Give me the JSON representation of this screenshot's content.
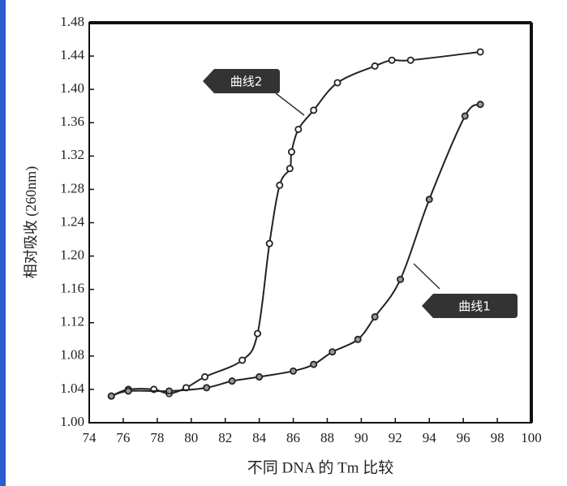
{
  "chart_data": {
    "type": "line",
    "x_label": "不同 DNA 的 Tm 比较",
    "y_label": "相对吸收 (260nm)",
    "xlim": [
      74,
      100
    ],
    "xticks": [
      74,
      76,
      78,
      80,
      82,
      84,
      86,
      88,
      90,
      92,
      94,
      96,
      98,
      100
    ],
    "ylim": [
      1,
      1.48
    ],
    "yticks": [
      {
        "value": 1,
        "label": "1.00"
      },
      1.04,
      1.08,
      1.12,
      1.16,
      {
        "value": 1.2,
        "label": "1.20"
      },
      1.24,
      1.28,
      1.32,
      1.36,
      {
        "value": 1.4,
        "label": "1.40"
      },
      1.44,
      1.48
    ],
    "series": [
      {
        "name": "曲线2",
        "color": "#222222",
        "x": [
          75.3,
          76.3,
          77.8,
          78.7,
          79.7,
          80.8,
          83,
          83.9,
          84.6,
          85.2,
          85.8,
          85.9,
          86.3,
          87.2,
          88.6,
          90.8,
          91.8,
          92.9,
          97
        ],
        "values": [
          1.032,
          1.04,
          1.04,
          1.035,
          1.042,
          1.055,
          1.075,
          1.107,
          1.215,
          1.285,
          1.305,
          1.325,
          1.352,
          1.375,
          1.408,
          1.428,
          1.435,
          1.435,
          1.445
        ]
      },
      {
        "name": "曲线1",
        "color": "#222222",
        "x": [
          75.3,
          76.3,
          78.7,
          80.9,
          82.4,
          84,
          86,
          87.2,
          88.3,
          89.8,
          90.8,
          92.3,
          94,
          96.1,
          97
        ],
        "values": [
          1.032,
          1.038,
          1.038,
          1.042,
          1.05,
          1.055,
          1.062,
          1.07,
          1.085,
          1.1,
          1.127,
          1.172,
          1.268,
          1.368,
          1.382
        ]
      }
    ]
  }
}
